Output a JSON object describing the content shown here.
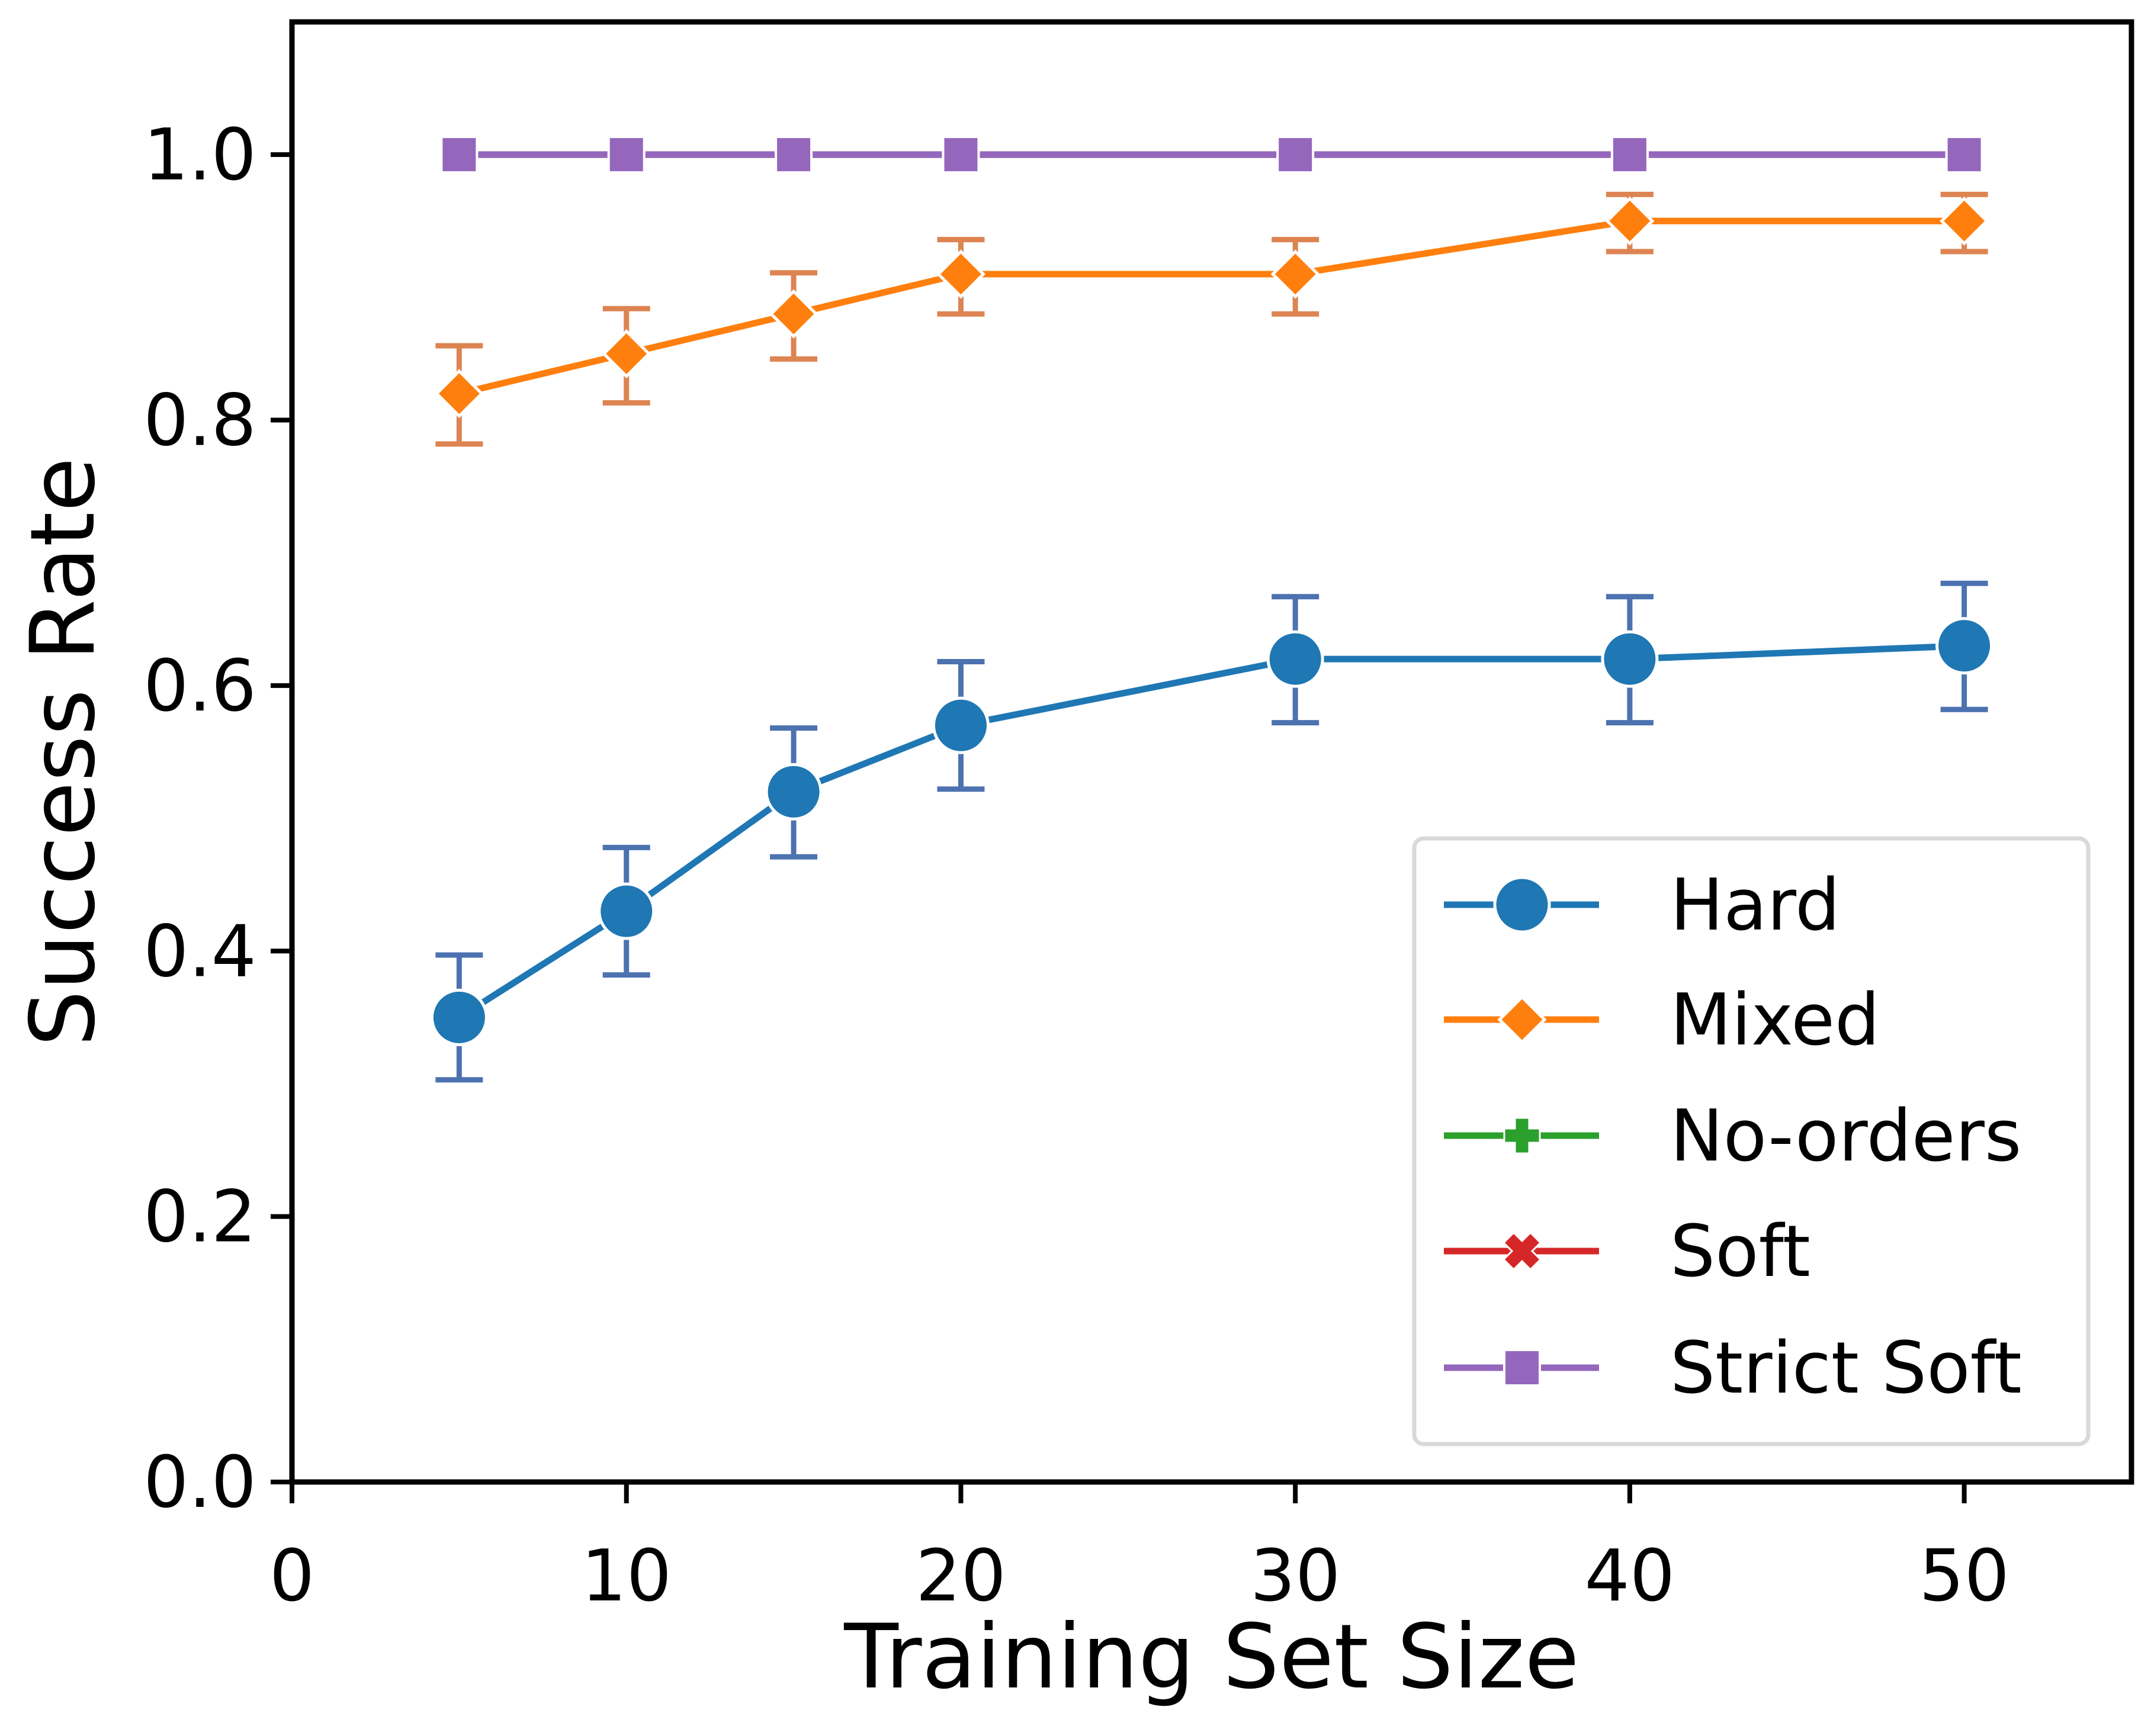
{
  "chart_data": {
    "type": "line",
    "title": "",
    "xlabel": "Training Set Size",
    "ylabel": "Success Rate",
    "xlim": [
      0,
      55
    ],
    "ylim": [
      0,
      1.1
    ],
    "x": [
      5,
      10,
      15,
      20,
      30,
      40,
      50
    ],
    "xticks": [
      0,
      10,
      20,
      30,
      40,
      50
    ],
    "xtick_labels": [
      "0",
      "10",
      "20",
      "30",
      "40",
      "50"
    ],
    "yticks": [
      0.0,
      0.2,
      0.4,
      0.6,
      0.8,
      1.0
    ],
    "ytick_labels": [
      "0.0",
      "0.2",
      "0.4",
      "0.6",
      "0.8",
      "1.0"
    ],
    "grid": false,
    "legend_position": "lower-right",
    "series": [
      {
        "name": "Hard",
        "marker": "circle",
        "color": "#1f77b4",
        "errcolor": "#4c72b0",
        "values": [
          0.35,
          0.43,
          0.52,
          0.57,
          0.62,
          0.62,
          0.63
        ],
        "err_low": [
          0.303,
          0.382,
          0.471,
          0.522,
          0.572,
          0.572,
          0.582
        ],
        "err_high": [
          0.397,
          0.478,
          0.568,
          0.618,
          0.667,
          0.667,
          0.677
        ]
      },
      {
        "name": "Mixed",
        "marker": "diamond",
        "color": "#ff7f0e",
        "errcolor": "#dd8452",
        "values": [
          0.82,
          0.85,
          0.88,
          0.91,
          0.91,
          0.95,
          0.95
        ],
        "err_low": [
          0.782,
          0.813,
          0.846,
          0.88,
          0.88,
          0.927,
          0.927
        ],
        "err_high": [
          0.856,
          0.884,
          0.911,
          0.936,
          0.936,
          0.97,
          0.97
        ]
      },
      {
        "name": "No-orders",
        "marker": "plus",
        "color": "#2ca02c",
        "values": [
          1.0,
          1.0,
          1.0,
          1.0,
          1.0,
          1.0,
          1.0
        ]
      },
      {
        "name": "Soft",
        "marker": "x",
        "color": "#d62728",
        "values": [
          1.0,
          1.0,
          1.0,
          1.0,
          1.0,
          1.0,
          1.0
        ]
      },
      {
        "name": "Strict Soft",
        "marker": "square",
        "color": "#9467bd",
        "values": [
          1.0,
          1.0,
          1.0,
          1.0,
          1.0,
          1.0,
          1.0
        ]
      }
    ]
  }
}
